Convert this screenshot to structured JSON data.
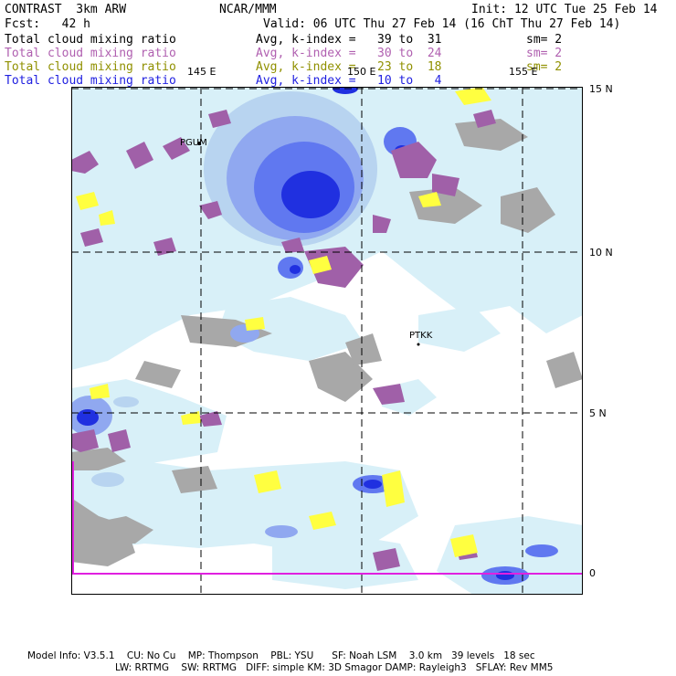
{
  "header": {
    "model": "CONTRAST  3km ARW",
    "center": "NCAR/MMM",
    "init": "Init: 12 UTC Tue 25 Feb 14",
    "fcst": "Fcst:   42 h",
    "valid": "Valid: 06 UTC Thu 27 Feb 14 (16 ChT Thu 27 Feb 14)"
  },
  "legend": [
    {
      "label": "Total cloud mixing ratio",
      "stats": "Avg, k-index =   39 to  31",
      "sm": "sm= 2",
      "color": "#000000"
    },
    {
      "label": "Total cloud mixing ratio",
      "stats": "Avg, k-index =   30 to  24",
      "sm": "sm= 2",
      "color": "#b060b0"
    },
    {
      "label": "Total cloud mixing ratio",
      "stats": "Avg, k-index =   23 to  18",
      "sm": "sm= 2",
      "color": "#909000"
    },
    {
      "label": "Total cloud mixing ratio",
      "stats": "Avg, k-index =   10 to   4",
      "sm": "",
      "color": "#2020e0"
    }
  ],
  "axes": {
    "lon_labels": [
      "145 E",
      "150 E",
      "155 E"
    ],
    "lat_labels": [
      "15 N",
      "10 N",
      "5 N",
      "0"
    ]
  },
  "stations": [
    "PGUM",
    "PTKK"
  ],
  "footer": {
    "line1": "Model Info: V3.5.1    CU: No Cu    MP: Thompson    PBL: YSU      SF: Noah LSM    3.0 km   39 levels   18 sec",
    "line2": "LW: RRTMG    SW: RRTMG   DIFF: simple KM: 3D Smagor DAMP: Rayleigh3   SFLAY: Rev MM5"
  },
  "colors": {
    "cloud_light": "#d8f0f8",
    "cloud_pale_blue": "#b8d4f0",
    "cloud_mid_blue": "#90a8f0",
    "cloud_blue": "#6078f0",
    "cloud_deep_blue": "#2030e0",
    "purple": "#a060a8",
    "gray": "#a8a8a8",
    "yellow": "#ffff40",
    "equator_line": "#e020e0"
  }
}
